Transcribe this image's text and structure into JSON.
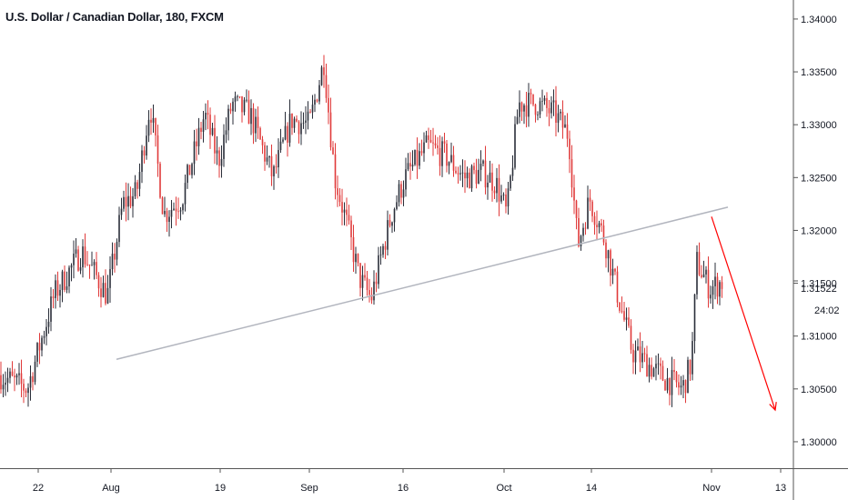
{
  "title": "U.S. Dollar / Canadian Dollar, 180, FXCM",
  "price_tag": {
    "value": "1.31522",
    "countdown": "24:02"
  },
  "colors": {
    "up": "#2a2e39",
    "down": "#e03a3a",
    "trendline": "#b2b5be",
    "arrow": "#ff0000",
    "grid_axis": "#555555"
  },
  "chart_data": {
    "type": "candlestick",
    "title": "U.S. Dollar / Canadian Dollar, 180, FXCM",
    "ylim": [
      1.2975,
      1.3418
    ],
    "y_ticks": [
      "1.30000",
      "1.30500",
      "1.31000",
      "1.31500",
      "1.32000",
      "1.32500",
      "1.33000",
      "1.33500",
      "1.34000"
    ],
    "x_labels": [
      {
        "label": "22",
        "t": 42
      },
      {
        "label": "Aug",
        "t": 122
      },
      {
        "label": "19",
        "t": 242
      },
      {
        "label": "Sep",
        "t": 340
      },
      {
        "label": "16",
        "t": 443
      },
      {
        "label": "Oct",
        "t": 554
      },
      {
        "label": "14",
        "t": 650
      },
      {
        "label": "Nov",
        "t": 782
      },
      {
        "label": "13",
        "t": 858
      }
    ],
    "price_path": [
      [
        0,
        1.3063
      ],
      [
        30,
        1.305
      ],
      [
        60,
        1.314
      ],
      [
        90,
        1.318
      ],
      [
        118,
        1.3138
      ],
      [
        135,
        1.3225
      ],
      [
        150,
        1.3235
      ],
      [
        165,
        1.332
      ],
      [
        180,
        1.3215
      ],
      [
        200,
        1.323
      ],
      [
        225,
        1.331
      ],
      [
        240,
        1.3265
      ],
      [
        255,
        1.332
      ],
      [
        275,
        1.331
      ],
      [
        300,
        1.325
      ],
      [
        320,
        1.3305
      ],
      [
        340,
        1.33
      ],
      [
        356,
        1.336
      ],
      [
        368,
        1.325
      ],
      [
        380,
        1.321
      ],
      [
        395,
        1.3155
      ],
      [
        408,
        1.3135
      ],
      [
        420,
        1.318
      ],
      [
        432,
        1.322
      ],
      [
        445,
        1.325
      ],
      [
        470,
        1.328
      ],
      [
        490,
        1.327
      ],
      [
        510,
        1.325
      ],
      [
        530,
        1.3255
      ],
      [
        545,
        1.3245
      ],
      [
        557,
        1.3215
      ],
      [
        570,
        1.332
      ],
      [
        590,
        1.332
      ],
      [
        610,
        1.331
      ],
      [
        625,
        1.329
      ],
      [
        635,
        1.3185
      ],
      [
        648,
        1.323
      ],
      [
        665,
        1.319
      ],
      [
        680,
        1.3135
      ],
      [
        695,
        1.3085
      ],
      [
        710,
        1.3075
      ],
      [
        730,
        1.306
      ],
      [
        750,
        1.305
      ],
      [
        760,
        1.3075
      ],
      [
        766,
        1.317
      ],
      [
        780,
        1.3145
      ],
      [
        795,
        1.3152
      ]
    ],
    "trendline": {
      "from": [
        128,
        1.3078
      ],
      "to": [
        800,
        1.3222
      ]
    },
    "arrow": {
      "from": [
        782,
        1.3213
      ],
      "to": [
        852,
        1.303
      ]
    },
    "last_price": 1.31522
  }
}
